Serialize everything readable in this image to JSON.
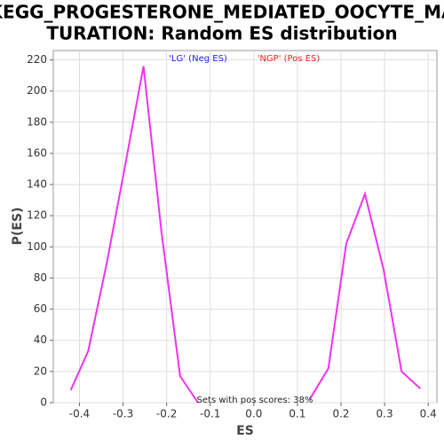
{
  "chart_data": {
    "type": "line",
    "title_lines": [
      "KEGG_PROGESTERONE_MEDIATED_OOCYTE_MA",
      "TURATION: Random ES distribution"
    ],
    "xlabel": "ES",
    "ylabel": "P(ES)",
    "annotations": [
      {
        "text": "'LG' (Neg ES)",
        "color": "#2222ee"
      },
      {
        "text": "'NGP' (Pos ES)",
        "color": "#ee2222"
      },
      {
        "text": "Sets with pos scores: 38%",
        "color": "#222222"
      }
    ],
    "series": [
      {
        "color": "#ee33ee",
        "x": [
          -0.42,
          -0.38,
          -0.337,
          -0.296,
          -0.253,
          -0.212,
          -0.169,
          -0.128
        ],
        "values": [
          8,
          33,
          90,
          151,
          216,
          110,
          17,
          0
        ]
      },
      {
        "color": "#ee33ee",
        "x": [
          0.128,
          0.171,
          0.212,
          0.255,
          0.298,
          0.339,
          0.382
        ],
        "values": [
          2,
          22,
          102,
          134,
          85,
          20,
          9
        ]
      }
    ],
    "xlim": [
      -0.46,
      0.42
    ],
    "ylim": [
      0,
      226
    ],
    "xticks": [
      -0.4,
      -0.3,
      -0.2,
      -0.1,
      {
        "value": 0,
        "label": "0.0"
      },
      0.1,
      0.2,
      0.3,
      0.4
    ],
    "yticks": [
      0,
      20,
      40,
      60,
      80,
      100,
      120,
      140,
      160,
      180,
      200,
      220
    ],
    "grid": true
  }
}
